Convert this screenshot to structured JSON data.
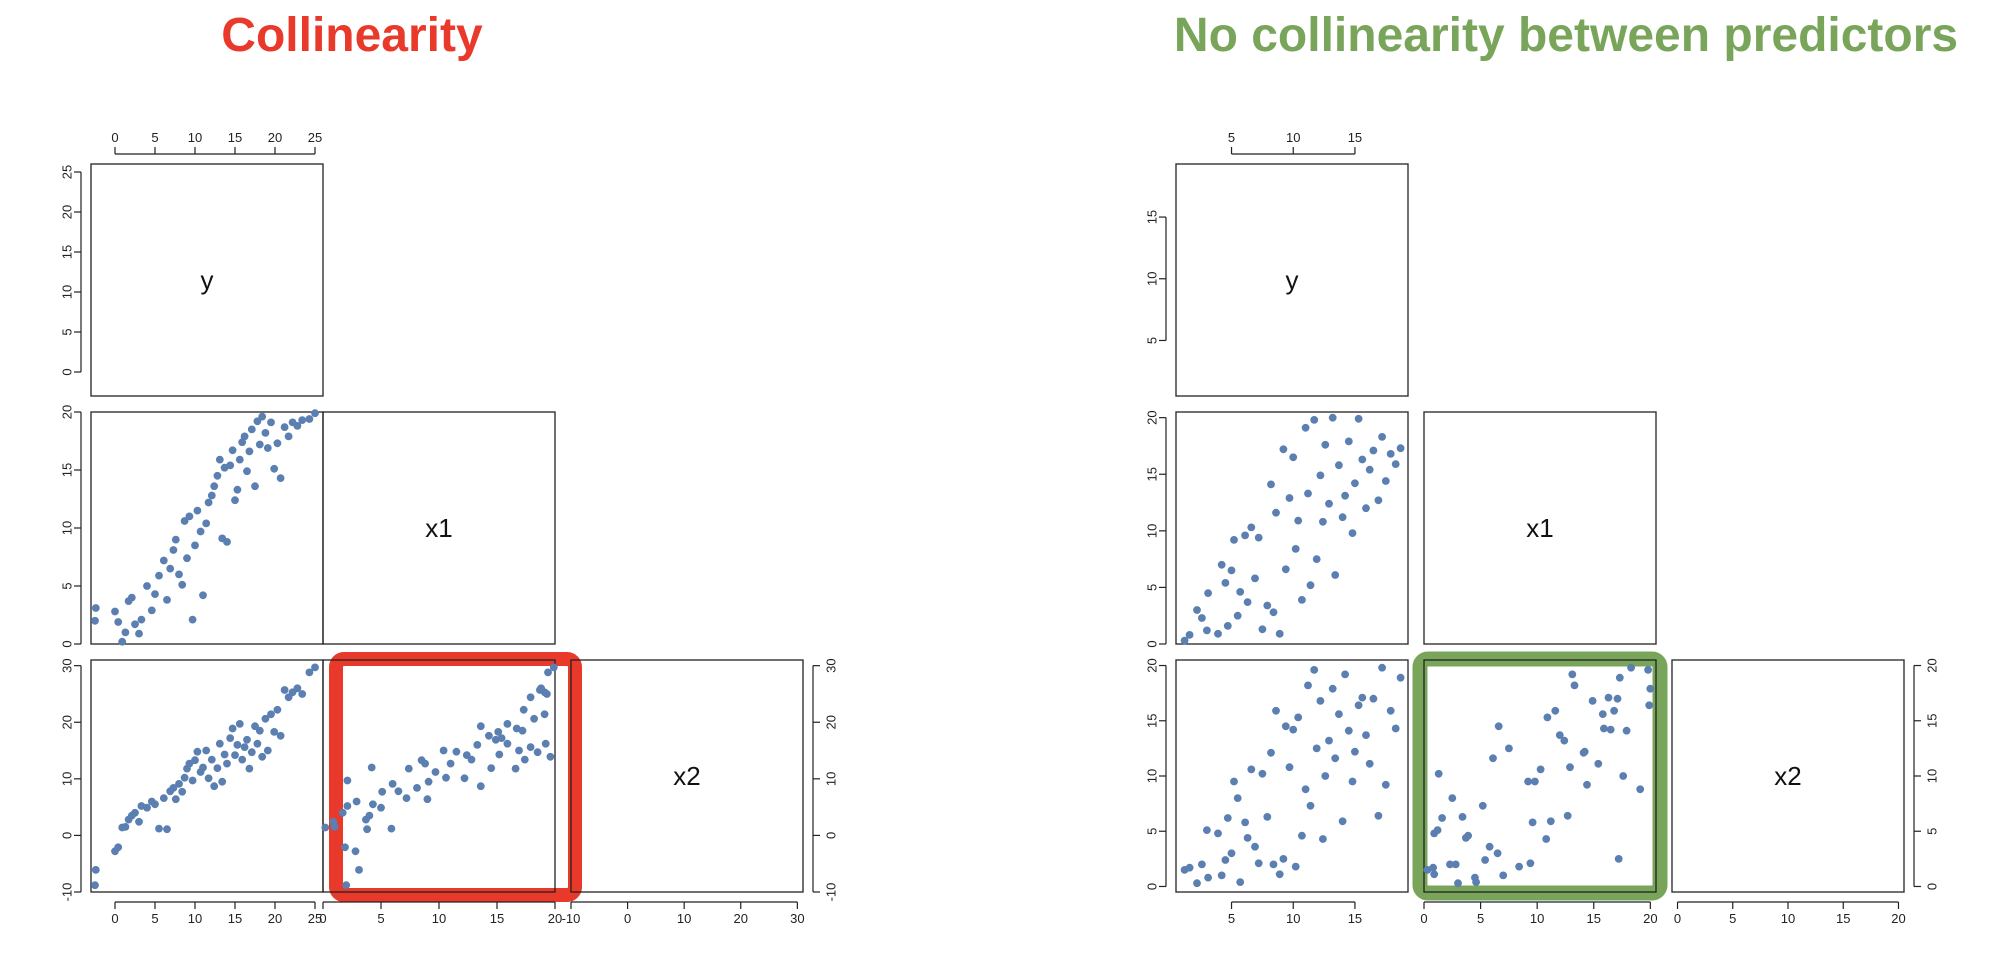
{
  "titles": {
    "left": "Collinearity",
    "right": "No collinearity between predictors"
  },
  "colors": {
    "left_title": "#e8392b",
    "right_title": "#78a55a",
    "points": "#5a7fb0",
    "highlight_left": "#e8392b",
    "highlight_right": "#78a55a"
  },
  "chart_data": [
    {
      "type": "scatter",
      "title": "Collinearity",
      "layout": "pairs-lower-triangle",
      "variables": [
        "y",
        "x1",
        "x2"
      ],
      "ranges": {
        "y": [
          -3,
          26
        ],
        "x1": [
          0,
          20
        ],
        "x2": [
          -10,
          31
        ]
      },
      "ticks": {
        "y": [
          0,
          5,
          10,
          15,
          20,
          25
        ],
        "x1": [
          0,
          5,
          10,
          15,
          20
        ],
        "x2": [
          -10,
          0,
          10,
          20,
          30
        ]
      },
      "highlighted_panel": "x2 vs x1",
      "points": [
        [
          -2.4,
          3.1,
          -6.1
        ],
        [
          -2.5,
          2.0,
          -8.8
        ],
        [
          0.0,
          2.8,
          -2.8
        ],
        [
          0.4,
          1.9,
          -2.1
        ],
        [
          0.9,
          0.2,
          1.4
        ],
        [
          1.3,
          1.0,
          1.5
        ],
        [
          1.7,
          3.7,
          2.8
        ],
        [
          2.1,
          4.0,
          3.5
        ],
        [
          2.5,
          1.7,
          4.0
        ],
        [
          3.0,
          0.9,
          2.4
        ],
        [
          3.3,
          2.1,
          5.2
        ],
        [
          4.0,
          5.0,
          4.9
        ],
        [
          4.6,
          2.9,
          6.0
        ],
        [
          5.0,
          4.3,
          5.5
        ],
        [
          5.5,
          5.9,
          1.2
        ],
        [
          6.1,
          7.2,
          6.6
        ],
        [
          6.5,
          3.8,
          1.1
        ],
        [
          6.9,
          6.5,
          7.8
        ],
        [
          7.3,
          8.1,
          8.4
        ],
        [
          7.6,
          9.0,
          6.4
        ],
        [
          8.0,
          6.0,
          9.1
        ],
        [
          8.4,
          5.1,
          7.7
        ],
        [
          8.7,
          10.6,
          10.2
        ],
        [
          9.0,
          7.4,
          11.8
        ],
        [
          9.3,
          11.0,
          12.7
        ],
        [
          9.7,
          2.1,
          9.7
        ],
        [
          10.0,
          8.5,
          13.3
        ],
        [
          10.3,
          11.5,
          14.8
        ],
        [
          10.7,
          9.7,
          11.2
        ],
        [
          11.0,
          4.2,
          12.0
        ],
        [
          11.4,
          10.4,
          15.0
        ],
        [
          11.7,
          12.2,
          10.1
        ],
        [
          12.1,
          12.8,
          13.4
        ],
        [
          12.4,
          13.6,
          8.7
        ],
        [
          12.8,
          14.5,
          11.9
        ],
        [
          13.1,
          15.9,
          16.2
        ],
        [
          13.4,
          9.1,
          9.5
        ],
        [
          13.7,
          15.2,
          14.3
        ],
        [
          14.0,
          8.8,
          12.7
        ],
        [
          14.4,
          15.4,
          17.2
        ],
        [
          14.7,
          16.7,
          18.9
        ],
        [
          15.0,
          12.4,
          14.2
        ],
        [
          15.3,
          13.3,
          16.0
        ],
        [
          15.6,
          15.9,
          19.7
        ],
        [
          15.9,
          17.4,
          13.4
        ],
        [
          16.2,
          17.9,
          15.6
        ],
        [
          16.5,
          14.9,
          16.9
        ],
        [
          16.8,
          16.6,
          11.8
        ],
        [
          17.1,
          18.5,
          14.7
        ],
        [
          17.5,
          13.6,
          19.3
        ],
        [
          17.8,
          19.2,
          16.2
        ],
        [
          18.1,
          17.2,
          18.5
        ],
        [
          18.4,
          19.6,
          13.9
        ],
        [
          18.8,
          18.2,
          20.6
        ],
        [
          19.1,
          16.9,
          15.0
        ],
        [
          19.5,
          19.1,
          21.4
        ],
        [
          19.9,
          15.1,
          18.3
        ],
        [
          20.3,
          17.3,
          22.2
        ],
        [
          20.7,
          14.3,
          17.6
        ],
        [
          21.2,
          18.7,
          25.7
        ],
        [
          21.7,
          17.9,
          24.4
        ],
        [
          22.2,
          19.1,
          25.3
        ],
        [
          22.8,
          18.8,
          26.0
        ],
        [
          23.4,
          19.3,
          25.0
        ],
        [
          24.3,
          19.4,
          28.8
        ],
        [
          25.0,
          19.9,
          29.7
        ]
      ]
    },
    {
      "type": "scatter",
      "title": "No collinearity between predictors",
      "layout": "pairs-lower-triangle",
      "variables": [
        "y",
        "x1",
        "x2"
      ],
      "ranges": {
        "y": [
          0.5,
          19.3
        ],
        "x1": [
          0,
          20.5
        ],
        "x2": [
          -0.5,
          20.5
        ]
      },
      "ticks": {
        "y": [
          5,
          10,
          15
        ],
        "x1": [
          0,
          5,
          10,
          15,
          20
        ],
        "x2": [
          0,
          5,
          10,
          15,
          20
        ]
      },
      "highlighted_panel": "x2 vs x1",
      "points": [
        [
          1.2,
          0.3,
          1.5
        ],
        [
          1.6,
          0.8,
          1.7
        ],
        [
          2.2,
          3.0,
          0.3
        ],
        [
          2.6,
          2.3,
          2.0
        ],
        [
          3.1,
          4.5,
          0.8
        ],
        [
          3.0,
          1.2,
          5.1
        ],
        [
          3.9,
          0.9,
          4.8
        ],
        [
          4.2,
          7.0,
          1.0
        ],
        [
          4.5,
          5.4,
          2.4
        ],
        [
          4.7,
          1.6,
          6.2
        ],
        [
          5.0,
          6.5,
          3.0
        ],
        [
          5.2,
          9.2,
          9.5
        ],
        [
          5.5,
          2.5,
          8.0
        ],
        [
          5.7,
          4.6,
          0.4
        ],
        [
          6.1,
          9.6,
          5.8
        ],
        [
          6.3,
          3.7,
          4.4
        ],
        [
          6.6,
          10.3,
          10.6
        ],
        [
          6.9,
          5.8,
          3.6
        ],
        [
          7.2,
          9.4,
          2.1
        ],
        [
          7.5,
          1.3,
          10.2
        ],
        [
          7.9,
          3.4,
          6.3
        ],
        [
          8.2,
          14.1,
          12.1
        ],
        [
          8.4,
          2.8,
          2.0
        ],
        [
          8.6,
          11.6,
          15.9
        ],
        [
          8.9,
          0.9,
          1.1
        ],
        [
          9.2,
          17.2,
          2.5
        ],
        [
          9.4,
          6.6,
          14.5
        ],
        [
          9.7,
          12.9,
          10.8
        ],
        [
          10.0,
          16.5,
          14.2
        ],
        [
          10.2,
          8.4,
          1.8
        ],
        [
          10.4,
          10.9,
          15.3
        ],
        [
          10.7,
          3.9,
          4.6
        ],
        [
          11.0,
          19.1,
          8.8
        ],
        [
          11.2,
          13.3,
          18.2
        ],
        [
          11.4,
          5.2,
          7.3
        ],
        [
          11.7,
          19.8,
          19.6
        ],
        [
          11.9,
          7.5,
          12.5
        ],
        [
          12.2,
          14.9,
          16.8
        ],
        [
          12.4,
          10.8,
          4.3
        ],
        [
          12.6,
          17.6,
          10.0
        ],
        [
          12.9,
          12.4,
          13.2
        ],
        [
          13.2,
          20.0,
          17.9
        ],
        [
          13.4,
          6.1,
          11.6
        ],
        [
          13.7,
          15.8,
          15.6
        ],
        [
          14.0,
          11.2,
          5.9
        ],
        [
          14.2,
          13.1,
          19.2
        ],
        [
          14.5,
          17.9,
          14.1
        ],
        [
          14.8,
          9.8,
          9.5
        ],
        [
          15.0,
          14.2,
          12.2
        ],
        [
          15.3,
          19.9,
          16.4
        ],
        [
          15.6,
          16.3,
          17.1
        ],
        [
          15.9,
          12.0,
          13.7
        ],
        [
          16.2,
          15.4,
          11.1
        ],
        [
          16.5,
          17.1,
          17.0
        ],
        [
          16.9,
          12.7,
          6.4
        ],
        [
          17.2,
          18.3,
          19.8
        ],
        [
          17.5,
          14.4,
          9.2
        ],
        [
          17.9,
          16.8,
          15.9
        ],
        [
          18.3,
          15.9,
          14.3
        ],
        [
          18.7,
          17.3,
          18.9
        ]
      ]
    }
  ]
}
